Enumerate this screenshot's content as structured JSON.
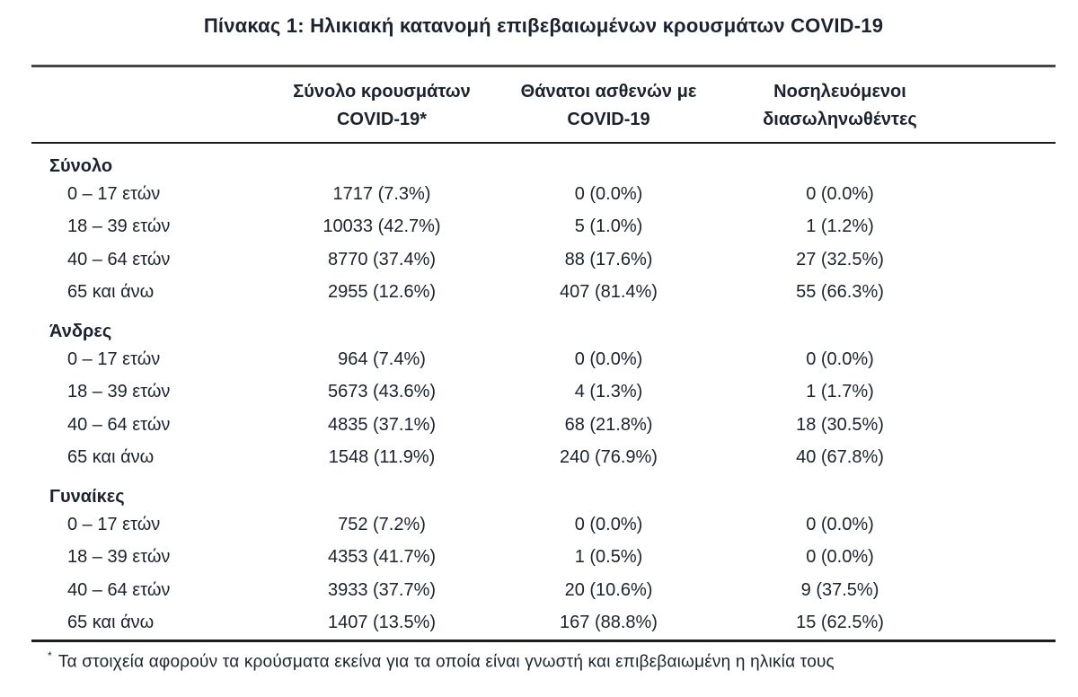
{
  "page": {
    "title": "Πίνακας 1: Ηλικιακή κατανομή επιβεβαιωμένων κρουσμάτων COVID-19"
  },
  "table": {
    "headers": [
      {
        "line1": "Σύνολο κρουσμάτων",
        "line2": "COVID-19*"
      },
      {
        "line1": "Θάνατοι ασθενών με",
        "line2": "COVID-19"
      },
      {
        "line1": "Νοσηλευόμενοι",
        "line2": "διασωληνωθέντες"
      }
    ],
    "sections": [
      {
        "label": "Σύνολο",
        "rows": [
          {
            "age": "0 – 17 ετών",
            "cases": "1717 (7.3%)",
            "deaths": "0 (0.0%)",
            "intubated": "0 (0.0%)"
          },
          {
            "age": "18 – 39 ετών",
            "cases": "10033 (42.7%)",
            "deaths": "5 (1.0%)",
            "intubated": "1 (1.2%)"
          },
          {
            "age": "40 – 64 ετών",
            "cases": "8770 (37.4%)",
            "deaths": "88 (17.6%)",
            "intubated": "27 (32.5%)"
          },
          {
            "age": "65 και άνω",
            "cases": "2955 (12.6%)",
            "deaths": "407 (81.4%)",
            "intubated": "55 (66.3%)"
          }
        ]
      },
      {
        "label": "Άνδρες",
        "rows": [
          {
            "age": "0 – 17 ετών",
            "cases": "964 (7.4%)",
            "deaths": "0 (0.0%)",
            "intubated": "0 (0.0%)"
          },
          {
            "age": "18 – 39 ετών",
            "cases": "5673 (43.6%)",
            "deaths": "4 (1.3%)",
            "intubated": "1 (1.7%)"
          },
          {
            "age": "40 – 64 ετών",
            "cases": "4835 (37.1%)",
            "deaths": "68 (21.8%)",
            "intubated": "18 (30.5%)"
          },
          {
            "age": "65 και άνω",
            "cases": "1548 (11.9%)",
            "deaths": "240 (76.9%)",
            "intubated": "40 (67.8%)"
          }
        ]
      },
      {
        "label": "Γυναίκες",
        "rows": [
          {
            "age": "0 – 17 ετών",
            "cases": "752 (7.2%)",
            "deaths": "0 (0.0%)",
            "intubated": "0 (0.0%)"
          },
          {
            "age": "18 – 39 ετών",
            "cases": "4353 (41.7%)",
            "deaths": "1 (0.5%)",
            "intubated": "0 (0.0%)"
          },
          {
            "age": "40 – 64 ετών",
            "cases": "3933 (37.7%)",
            "deaths": "20 (10.6%)",
            "intubated": "9 (37.5%)"
          },
          {
            "age": "65 και άνω",
            "cases": "1407 (13.5%)",
            "deaths": "167 (88.8%)",
            "intubated": "15 (62.5%)"
          }
        ]
      }
    ],
    "footnote_symbol": "*",
    "footnote": "Τα στοιχεία αφορούν τα κρούσματα εκείνα για τα οποία είναι γνωστή και επιβεβαιωμένη η ηλικία τους"
  },
  "colors": {
    "text": "#1c222e",
    "rule_top": "#464646",
    "rule_dark": "#1d1d1d",
    "background": "#ffffff"
  }
}
